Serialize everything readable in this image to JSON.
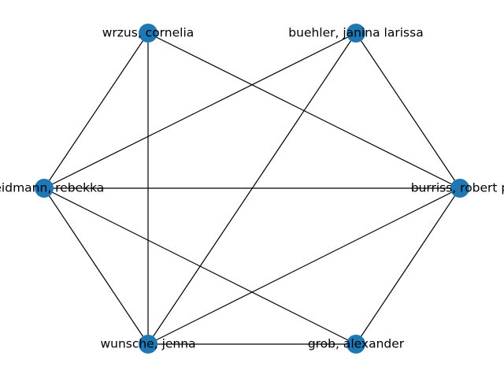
{
  "graph": {
    "node_color": "#1f77b4",
    "edge_color": "#000000",
    "nodes": [
      {
        "id": "wrzus",
        "label": "wrzus, cornelia"
      },
      {
        "id": "buehler",
        "label": "buehler, janina larissa"
      },
      {
        "id": "weidmann",
        "label": "weidmann, rebekka"
      },
      {
        "id": "burriss",
        "label": "burriss, robert p"
      },
      {
        "id": "wunsche",
        "label": "wunsche, jenna"
      },
      {
        "id": "grob",
        "label": "grob, alexander"
      }
    ],
    "edges": [
      [
        "wrzus",
        "weidmann"
      ],
      [
        "wrzus",
        "wunsche"
      ],
      [
        "wrzus",
        "burriss"
      ],
      [
        "buehler",
        "weidmann"
      ],
      [
        "buehler",
        "wunsche"
      ],
      [
        "buehler",
        "burriss"
      ],
      [
        "weidmann",
        "burriss"
      ],
      [
        "weidmann",
        "wunsche"
      ],
      [
        "weidmann",
        "grob"
      ],
      [
        "burriss",
        "wunsche"
      ],
      [
        "burriss",
        "grob"
      ],
      [
        "wunsche",
        "grob"
      ]
    ]
  }
}
